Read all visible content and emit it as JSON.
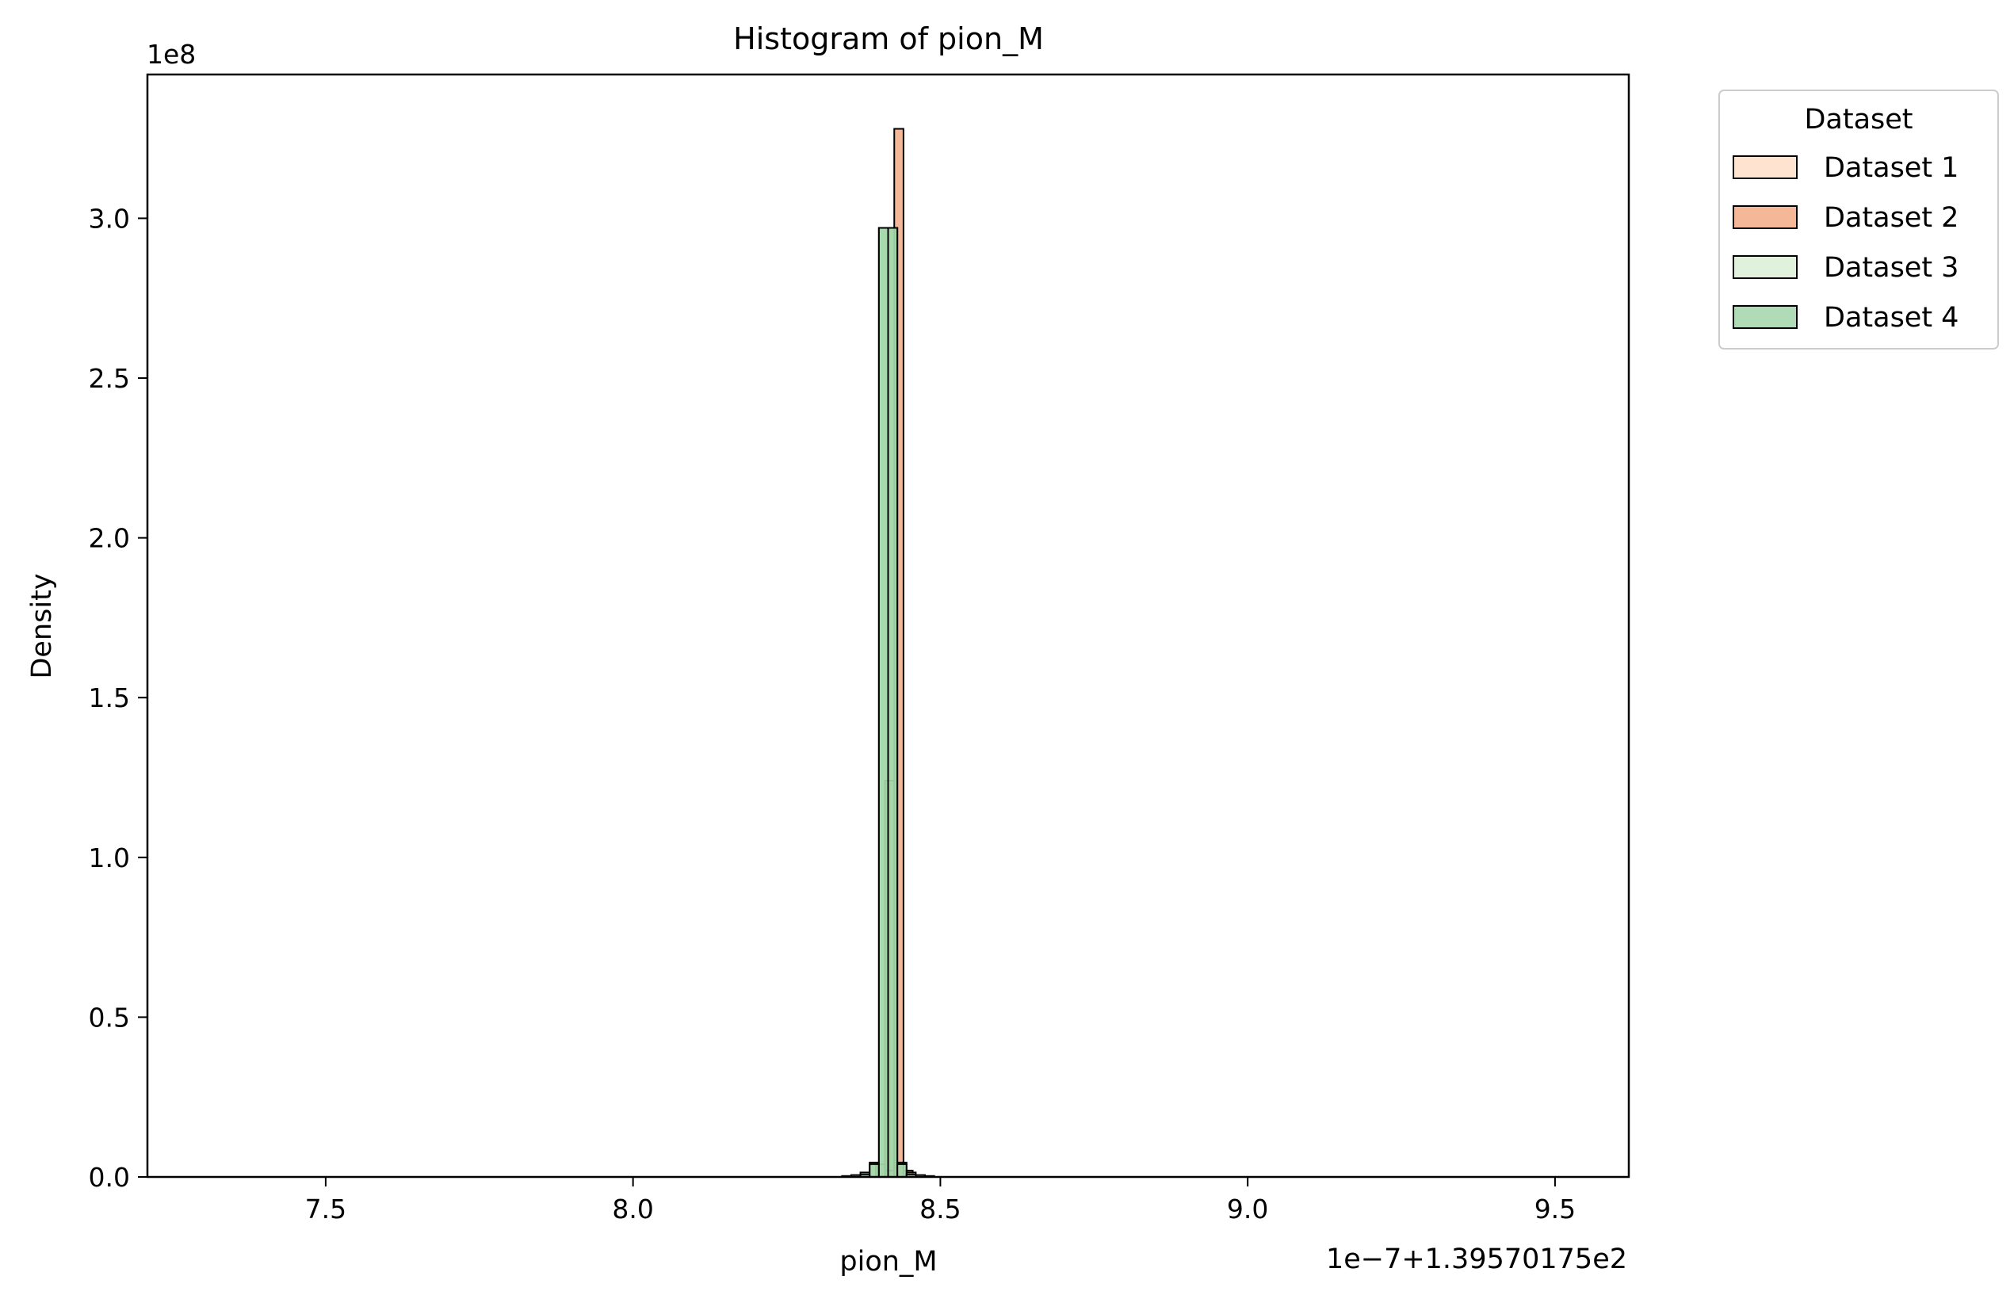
{
  "chart_data": {
    "type": "bar",
    "title": "Histogram of pion_M",
    "xlabel": "pion_M",
    "ylabel": "Density",
    "x_offset_label": "1e−7+1.39570175e2",
    "y_scale_label": "1e8",
    "xlim": [
      7.21,
      9.62
    ],
    "ylim": [
      0,
      3.45
    ],
    "x_ticks": [
      7.5,
      8.0,
      8.5,
      9.0,
      9.5
    ],
    "x_tick_labels": [
      "7.5",
      "8.0",
      "8.5",
      "9.0",
      "9.5"
    ],
    "y_ticks": [
      0.0,
      0.5,
      1.0,
      1.5,
      2.0,
      2.5,
      3.0
    ],
    "y_tick_labels": [
      "0.0",
      "0.5",
      "1.0",
      "1.5",
      "2.0",
      "2.5",
      "3.0"
    ],
    "grid": false,
    "legend": {
      "title": "Dataset",
      "placement": "outside-top-right"
    },
    "series": [
      {
        "name": "Dataset 1",
        "color": "#fddbc0",
        "bins": [
          [
            8.395,
            8.41,
            0.04
          ],
          [
            8.41,
            8.425,
            1.24
          ],
          [
            8.425,
            8.44,
            0.03
          ]
        ]
      },
      {
        "name": "Dataset 2",
        "color": "#f0a077",
        "bins": [
          [
            8.41,
            8.425,
            0.02
          ],
          [
            8.425,
            8.44,
            3.28
          ],
          [
            8.44,
            8.455,
            0.02
          ]
        ]
      },
      {
        "name": "Dataset 3",
        "color": "#d6eecf",
        "bins": [
          [
            8.34,
            8.355,
            0.003
          ],
          [
            8.355,
            8.37,
            0.006
          ],
          [
            8.37,
            8.385,
            0.014
          ],
          [
            8.385,
            8.4,
            0.045
          ],
          [
            8.4,
            8.415,
            2.97
          ],
          [
            8.415,
            8.43,
            2.97
          ],
          [
            8.43,
            8.445,
            0.045
          ],
          [
            8.445,
            8.46,
            0.014
          ],
          [
            8.46,
            8.475,
            0.006
          ],
          [
            8.475,
            8.49,
            0.003
          ]
        ]
      },
      {
        "name": "Dataset 4",
        "color": "#94cf9f",
        "bins": [
          [
            8.37,
            8.385,
            0.008
          ],
          [
            8.385,
            8.4,
            0.04
          ],
          [
            8.4,
            8.415,
            2.97
          ],
          [
            8.415,
            8.43,
            2.97
          ],
          [
            8.43,
            8.445,
            0.04
          ],
          [
            8.445,
            8.46,
            0.008
          ]
        ]
      }
    ]
  }
}
